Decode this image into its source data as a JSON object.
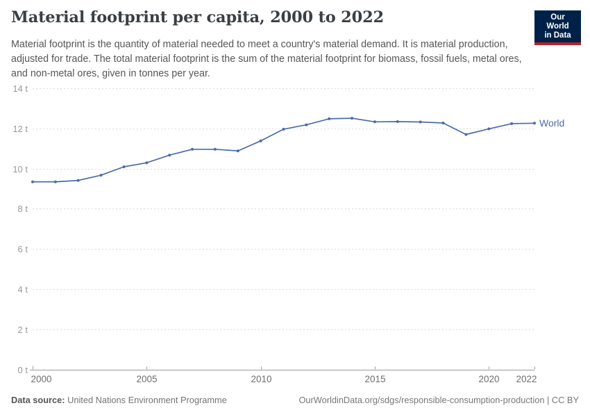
{
  "header": {
    "title": "Material footprint per capita, 2000 to 2022",
    "subtitle": "Material footprint is the quantity of material needed to meet a country's material demand. It is material production, adjusted for trade. The total material footprint is the sum of the material footprint for biomass, fossil fuels, metal ores, and non-metal ores, given in tonnes per year.",
    "logo": {
      "line1": "Our World",
      "line2": "in Data",
      "bg_color": "#002147",
      "accent_color": "#b5232d"
    }
  },
  "chart_data": {
    "type": "line",
    "title": "Material footprint per capita, 2000 to 2022",
    "xlabel": "",
    "ylabel": "",
    "unit": "tonnes per year",
    "xlim": [
      2000,
      2022
    ],
    "ylim": [
      0,
      14
    ],
    "x_ticks": [
      2000,
      2005,
      2010,
      2015,
      2020,
      2022
    ],
    "y_ticks": [
      0,
      2,
      4,
      6,
      8,
      10,
      12,
      14
    ],
    "y_tick_format": "{v} t",
    "grid": "horizontal-dashed",
    "legend_position": "end-of-line-label",
    "grid_color": "#dcdcdc",
    "axis_color": "#9a9a9a",
    "y_label_color": "#999999",
    "x_label_color": "#6e6e6e",
    "series": [
      {
        "name": "World",
        "color": "#4c6ba8",
        "x": [
          2000,
          2001,
          2002,
          2003,
          2004,
          2005,
          2006,
          2007,
          2008,
          2009,
          2010,
          2011,
          2012,
          2013,
          2014,
          2015,
          2016,
          2017,
          2018,
          2019,
          2020,
          2021,
          2022
        ],
        "values": [
          9.34,
          9.34,
          9.41,
          9.67,
          10.09,
          10.29,
          10.67,
          10.96,
          10.96,
          10.88,
          11.38,
          11.96,
          12.18,
          12.48,
          12.51,
          12.33,
          12.34,
          12.32,
          12.27,
          11.7,
          11.98,
          12.24,
          12.26
        ]
      }
    ]
  },
  "footer": {
    "datasource_label": "Data source:",
    "datasource_value": "United Nations Environment Programme",
    "credit": "OurWorldinData.org/sdgs/responsible-consumption-production | CC BY"
  }
}
